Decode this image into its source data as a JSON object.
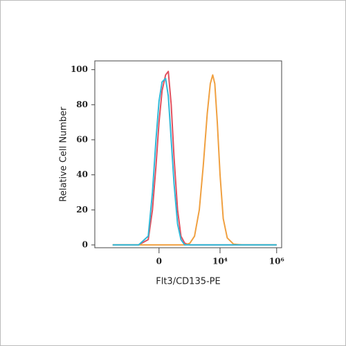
{
  "chart_data": {
    "type": "line",
    "xlabel": "Flt3/CD135-PE",
    "ylabel": "Relative Cell Number",
    "x": [
      -3000,
      -1000,
      -300,
      -100,
      -50,
      -20,
      0,
      20,
      50,
      80,
      120,
      170,
      250,
      350,
      500,
      800,
      1200,
      1800,
      2500,
      3500,
      4500,
      5500,
      6500,
      8000,
      10000,
      13000,
      18000,
      30000,
      60000,
      150000,
      400000,
      1000000
    ],
    "series": [
      {
        "color": "#e0505e",
        "values": [
          0,
          0,
          0,
          3,
          20,
          45,
          70,
          88,
          97,
          99,
          80,
          50,
          20,
          5,
          1,
          0,
          0,
          0,
          0,
          0,
          0,
          0,
          0,
          0,
          0,
          0,
          0,
          0,
          0,
          0,
          0,
          0
        ]
      },
      {
        "color": "#f0a040",
        "values": [
          0,
          0,
          0,
          0,
          0,
          0,
          0,
          0,
          0,
          0,
          0,
          0,
          0,
          0,
          0,
          1,
          5,
          20,
          45,
          75,
          92,
          97,
          92,
          70,
          40,
          15,
          4,
          0.5,
          0,
          0,
          0,
          0
        ]
      },
      {
        "color": "#30b8d8",
        "values": [
          0,
          0,
          0,
          5,
          30,
          60,
          82,
          93,
          95,
          85,
          60,
          35,
          12,
          3,
          0,
          0,
          0,
          0,
          0,
          0,
          0,
          0,
          0,
          0,
          0,
          0,
          0,
          0,
          0,
          0,
          0,
          0
        ]
      }
    ],
    "xscale": "symlog",
    "linthresh": 71,
    "xlim": [
      -13000,
      1500000
    ],
    "xticks": [
      0,
      {
        "value": 10000,
        "label": "10⁴"
      },
      {
        "value": 1000000,
        "label": "10⁶"
      }
    ],
    "ylim": [
      -1.6,
      105
    ],
    "yticks": [
      0,
      20,
      40,
      60,
      80,
      100
    ]
  }
}
